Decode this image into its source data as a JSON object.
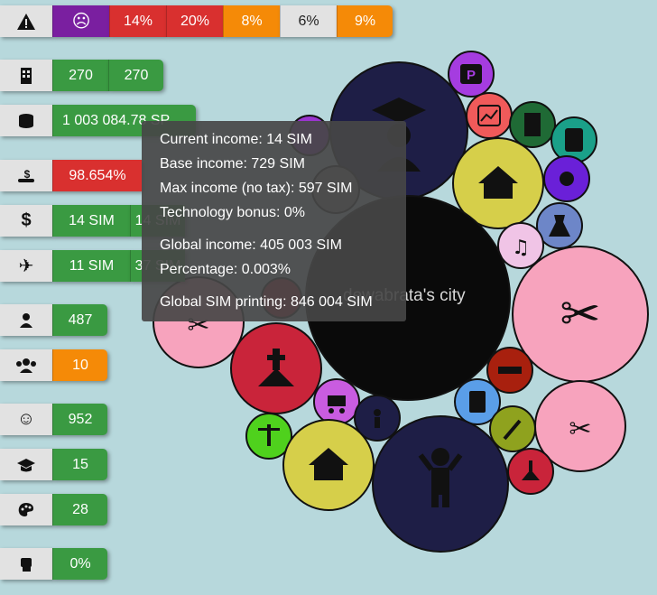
{
  "stats": {
    "warning_row": {
      "icon": "warning-icon",
      "mood_icon": "sad-face-icon",
      "segments": [
        "14%",
        "20%",
        "8%",
        "6%",
        "9%"
      ]
    },
    "buildings": {
      "icon": "building-icon",
      "values": [
        "270",
        "270"
      ]
    },
    "money": {
      "icon": "coins-icon",
      "value": "1 003 084.78 SP"
    },
    "tax": {
      "icon": "hand-money-icon",
      "value": "98.654%"
    },
    "income": {
      "icon": "dollar-icon",
      "values": [
        "14 SIM",
        "14 SIM"
      ]
    },
    "travel": {
      "icon": "airplane-icon",
      "values": [
        "11 SIM",
        "37 SIM"
      ]
    },
    "population": {
      "icon": "person-icon",
      "value": "487"
    },
    "groups": {
      "icon": "people-group-icon",
      "value": "10"
    },
    "happiness": {
      "icon": "smile-icon",
      "value": "952"
    },
    "education": {
      "icon": "graduation-cap-icon",
      "value": "15"
    },
    "culture": {
      "icon": "palette-icon",
      "value": "28"
    },
    "strength": {
      "icon": "fist-icon",
      "value": "0%"
    }
  },
  "city": {
    "name": "dewabrata's city"
  },
  "tooltip": {
    "current_income": "Current income: 14 SIM",
    "base_income": "Base income: 729 SIM",
    "max_income": "Max income (no tax): 597 SIM",
    "tech_bonus": "Technology bonus: 0%",
    "global_income": "Global income: 405 003 SIM",
    "percentage": "Percentage: 0.003%",
    "global_printing": "Global SIM printing: 846 004 SIM"
  },
  "colors": {
    "background": "#b7d8dc",
    "green": "#3a9a42",
    "red": "#d9302f",
    "orange": "#f58a07",
    "purple": "#7a1fa0"
  }
}
